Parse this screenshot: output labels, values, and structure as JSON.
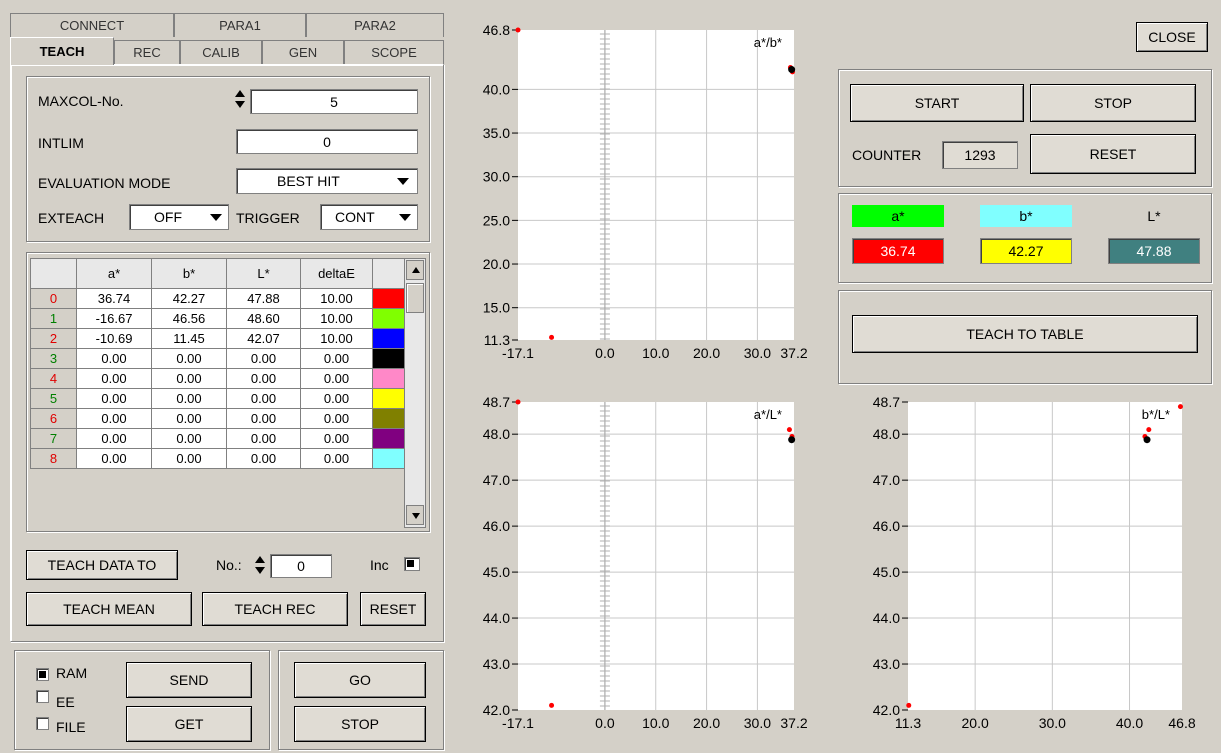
{
  "tabs_row1": [
    "CONNECT",
    "PARA1",
    "PARA2"
  ],
  "tabs_row2": [
    "TEACH",
    "REC",
    "CALIB",
    "GEN",
    "SCOPE"
  ],
  "teach": {
    "maxcol_label": "MAXCOL-No.",
    "maxcol_value": "5",
    "intlim_label": "INTLIM",
    "intlim_value": "0",
    "eval_label": "EVALUATION MODE",
    "eval_value": "BEST HIT",
    "exteach_label": "EXTEACH",
    "exteach_value": "OFF",
    "trigger_label": "TRIGGER",
    "trigger_value": "CONT"
  },
  "table": {
    "headers": [
      "",
      "a*",
      "b*",
      "L*",
      "deltaE",
      ""
    ],
    "rows": [
      {
        "idx": "0",
        "a": "36.74",
        "b": "42.27",
        "L": "47.88",
        "dE": "10.00",
        "color": "#ff0000"
      },
      {
        "idx": "1",
        "a": "-16.67",
        "b": "46.56",
        "L": "48.60",
        "dE": "10.00",
        "color": "#80ff00"
      },
      {
        "idx": "2",
        "a": "-10.69",
        "b": "11.45",
        "L": "42.07",
        "dE": "10.00",
        "color": "#0000ff"
      },
      {
        "idx": "3",
        "a": "0.00",
        "b": "0.00",
        "L": "0.00",
        "dE": "0.00",
        "color": "#000000"
      },
      {
        "idx": "4",
        "a": "0.00",
        "b": "0.00",
        "L": "0.00",
        "dE": "0.00",
        "color": "#ff88c8"
      },
      {
        "idx": "5",
        "a": "0.00",
        "b": "0.00",
        "L": "0.00",
        "dE": "0.00",
        "color": "#ffff00"
      },
      {
        "idx": "6",
        "a": "0.00",
        "b": "0.00",
        "L": "0.00",
        "dE": "0.00",
        "color": "#808000"
      },
      {
        "idx": "7",
        "a": "0.00",
        "b": "0.00",
        "L": "0.00",
        "dE": "0.00",
        "color": "#800080"
      },
      {
        "idx": "8",
        "a": "0.00",
        "b": "0.00",
        "L": "0.00",
        "dE": "0.00",
        "color": "#80ffff"
      }
    ]
  },
  "teach_data_to": "TEACH DATA TO",
  "no_label": "No.:",
  "no_value": "0",
  "inc_label": "Inc",
  "teach_mean": "TEACH MEAN",
  "teach_rec": "TEACH REC",
  "reset_left": "RESET",
  "mem": {
    "ram": "RAM",
    "ee": "EE",
    "file": "FILE",
    "send": "SEND",
    "get": "GET"
  },
  "go": "GO",
  "stop_bottom": "STOP",
  "close": "CLOSE",
  "start": "START",
  "stop": "STOP",
  "counter_label": "COUNTER",
  "counter_value": "1293",
  "reset_right": "RESET",
  "values": {
    "a_label": "a*",
    "b_label": "b*",
    "L_label": "L*",
    "a": "36.74",
    "b": "42.27",
    "L": "47.88",
    "a_color": "#00ff00",
    "b_color": "#80ffff",
    "a_bg": "#ff0000",
    "b_bg": "#ffff00",
    "L_bg": "#408080"
  },
  "teach_to_table": "TEACH TO TABLE",
  "chart_data": [
    {
      "type": "scatter",
      "title": "a*/b*",
      "xlim": [
        -17.1,
        37.2
      ],
      "ylim": [
        11.3,
        46.8
      ],
      "xticks": [
        "-17.1",
        "0.0",
        "10.0",
        "20.0",
        "30.0",
        "37.2"
      ],
      "yticks": [
        "46.8",
        "40.0",
        "35.0",
        "30.0",
        "25.0",
        "20.0",
        "15.0",
        "11.3"
      ],
      "points_red": [
        [
          -17.1,
          46.8
        ],
        [
          -10.5,
          11.6
        ],
        [
          36.5,
          42.5
        ],
        [
          36.9,
          42.0
        ]
      ],
      "points_black": [
        [
          36.74,
          42.27
        ]
      ]
    },
    {
      "type": "scatter",
      "title": "a*/L*",
      "xlim": [
        -17.1,
        37.2
      ],
      "ylim": [
        42.0,
        48.7
      ],
      "xticks": [
        "-17.1",
        "0.0",
        "10.0",
        "20.0",
        "30.0",
        "37.2"
      ],
      "yticks": [
        "48.7",
        "48.0",
        "47.0",
        "46.0",
        "45.0",
        "44.0",
        "43.0",
        "42.0"
      ],
      "points_red": [
        [
          -17.1,
          48.7
        ],
        [
          -10.5,
          42.1
        ],
        [
          36.3,
          48.1
        ],
        [
          36.8,
          47.95
        ]
      ],
      "points_black": [
        [
          36.74,
          47.88
        ]
      ]
    },
    {
      "type": "scatter",
      "title": "b*/L*",
      "xlim": [
        11.3,
        46.8
      ],
      "ylim": [
        42.0,
        48.7
      ],
      "xticks": [
        "11.3",
        "20.0",
        "30.0",
        "40.0",
        "46.8"
      ],
      "yticks": [
        "48.7",
        "48.0",
        "47.0",
        "46.0",
        "45.0",
        "44.0",
        "43.0",
        "42.0"
      ],
      "points_red": [
        [
          46.6,
          48.6
        ],
        [
          11.4,
          42.1
        ],
        [
          42.5,
          48.1
        ],
        [
          42.0,
          47.95
        ]
      ],
      "points_black": [
        [
          42.27,
          47.88
        ]
      ]
    }
  ]
}
